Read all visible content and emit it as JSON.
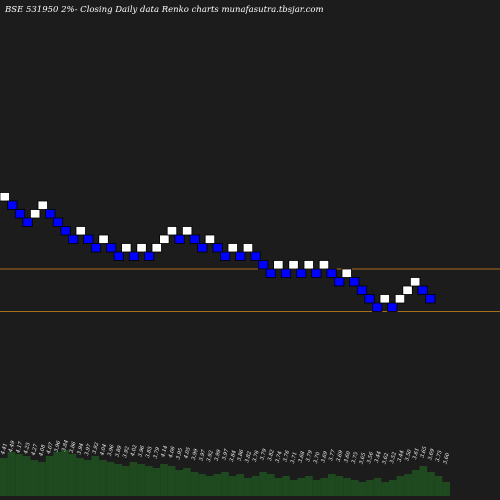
{
  "chart_data": {
    "type": "renko",
    "title": "BSE 531950  2%-  Closing Daily data  Renko  charts munafasutra.tbsjar.com",
    "colors": {
      "background": "#1c1c1c",
      "up_brick": "#ffffff",
      "down_brick": "#0000ff",
      "brick_border": "#000000",
      "reference_line": "#d4881a",
      "volume_bar": "#1f4a1f"
    },
    "bricks": [
      {
        "dir": "up",
        "level": 1
      },
      {
        "dir": "down",
        "level": 0
      },
      {
        "dir": "down",
        "level": -1
      },
      {
        "dir": "down",
        "level": -2
      },
      {
        "dir": "up",
        "level": -1
      },
      {
        "dir": "up",
        "level": 0
      },
      {
        "dir": "down",
        "level": -1
      },
      {
        "dir": "down",
        "level": -2
      },
      {
        "dir": "down",
        "level": -3
      },
      {
        "dir": "down",
        "level": -4
      },
      {
        "dir": "up",
        "level": -3
      },
      {
        "dir": "down",
        "level": -4
      },
      {
        "dir": "down",
        "level": -5
      },
      {
        "dir": "up",
        "level": -4
      },
      {
        "dir": "down",
        "level": -5
      },
      {
        "dir": "down",
        "level": -6
      },
      {
        "dir": "up",
        "level": -5
      },
      {
        "dir": "down",
        "level": -6
      },
      {
        "dir": "up",
        "level": -5
      },
      {
        "dir": "down",
        "level": -6
      },
      {
        "dir": "up",
        "level": -5
      },
      {
        "dir": "up",
        "level": -4
      },
      {
        "dir": "up",
        "level": -3
      },
      {
        "dir": "down",
        "level": -4
      },
      {
        "dir": "up",
        "level": -3
      },
      {
        "dir": "down",
        "level": -4
      },
      {
        "dir": "down",
        "level": -5
      },
      {
        "dir": "up",
        "level": -4
      },
      {
        "dir": "down",
        "level": -5
      },
      {
        "dir": "down",
        "level": -6
      },
      {
        "dir": "up",
        "level": -5
      },
      {
        "dir": "down",
        "level": -6
      },
      {
        "dir": "up",
        "level": -5
      },
      {
        "dir": "down",
        "level": -6
      },
      {
        "dir": "down",
        "level": -7
      },
      {
        "dir": "down",
        "level": -8
      },
      {
        "dir": "up",
        "level": -7
      },
      {
        "dir": "down",
        "level": -8
      },
      {
        "dir": "up",
        "level": -7
      },
      {
        "dir": "down",
        "level": -8
      },
      {
        "dir": "up",
        "level": -7
      },
      {
        "dir": "down",
        "level": -8
      },
      {
        "dir": "up",
        "level": -7
      },
      {
        "dir": "down",
        "level": -8
      },
      {
        "dir": "down",
        "level": -9
      },
      {
        "dir": "up",
        "level": -8
      },
      {
        "dir": "down",
        "level": -9
      },
      {
        "dir": "down",
        "level": -10
      },
      {
        "dir": "down",
        "level": -11
      },
      {
        "dir": "down",
        "level": -12
      },
      {
        "dir": "up",
        "level": -11
      },
      {
        "dir": "down",
        "level": -12
      },
      {
        "dir": "up",
        "level": -11
      },
      {
        "dir": "up",
        "level": -10
      },
      {
        "dir": "up",
        "level": -9
      },
      {
        "dir": "down",
        "level": -10
      },
      {
        "dir": "down",
        "level": -11
      }
    ],
    "reference_lines": [
      {
        "level": -7.5
      },
      {
        "level": -12.5
      }
    ],
    "price_labels": [
      "4.41",
      "4.49",
      "4.17",
      "4.25",
      "4.27",
      "4.08",
      "4.07",
      "3.96",
      "3.84",
      "3.86",
      "3.94",
      "3.97",
      "3.92",
      "4.04",
      "3.96",
      "3.89",
      "3.92",
      "4.02",
      "3.96",
      "3.85",
      "3.79",
      "4.14",
      "4.06",
      "3.95",
      "4.05",
      "3.99",
      "3.97",
      "3.92",
      "3.99",
      "3.97",
      "3.84",
      "3.86",
      "3.82",
      "3.76",
      "3.79",
      "3.82",
      "3.74",
      "3.76",
      "3.71",
      "3.68",
      "3.79",
      "3.70",
      "3.69",
      "3.77",
      "3.69",
      "3.60",
      "3.75",
      "3.65",
      "3.56",
      "3.44",
      "3.62",
      "3.52",
      "3.44",
      "3.50",
      "3.61",
      "3.65",
      "3.69",
      "3.75",
      "3.60"
    ],
    "volume": [
      0.38,
      0.44,
      0.42,
      0.4,
      0.36,
      0.34,
      0.4,
      0.44,
      0.46,
      0.42,
      0.38,
      0.36,
      0.4,
      0.36,
      0.34,
      0.32,
      0.3,
      0.34,
      0.32,
      0.3,
      0.28,
      0.32,
      0.3,
      0.26,
      0.28,
      0.24,
      0.22,
      0.2,
      0.22,
      0.24,
      0.2,
      0.22,
      0.18,
      0.2,
      0.24,
      0.22,
      0.18,
      0.2,
      0.16,
      0.18,
      0.2,
      0.16,
      0.18,
      0.22,
      0.2,
      0.18,
      0.16,
      0.14,
      0.16,
      0.18,
      0.14,
      0.16,
      0.2,
      0.22,
      0.26,
      0.3,
      0.24,
      0.2,
      0.14
    ]
  }
}
